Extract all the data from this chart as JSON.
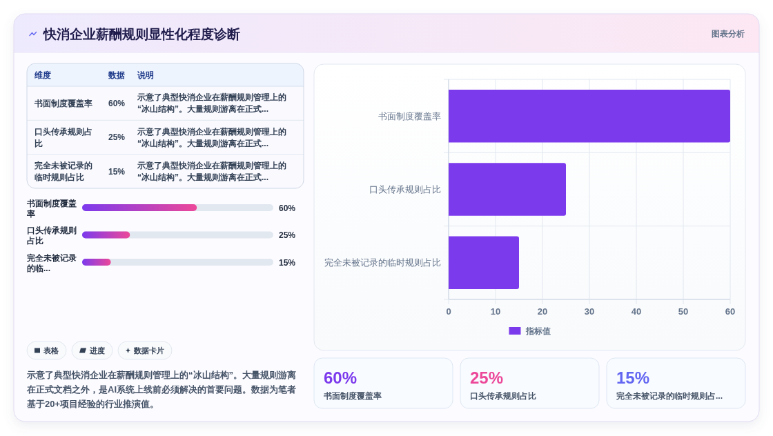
{
  "chart_data": [
    {
      "type": "other",
      "title": "快消企业薪酬规则显性化程度诊断",
      "categories": [
        "书面制度覆盖率",
        "口头传承规则占比",
        "完全未被记录的临时规则占比"
      ],
      "annotations": [
        "图表分析",
        "维度",
        "数据",
        "说明",
        "60%",
        "示意了典型快消企业在薪酬规则管理上的“冰山结构”。大量规则游离在正式...",
        "25%",
        "示意了典型快消企业在薪酬规则管理上的“冰山结构”。大量规则游离在正式...",
        "15%",
        "示意了典型快消企业在薪酬规则管理上的“冰山结构”。大量规则游离在正式..."
      ]
    },
    {
      "type": "bar",
      "orientation": "horizontal",
      "categories": [
        "书面制度覆盖率",
        "口头传承规则占比",
        "完全未被记录的临..."
      ],
      "values": [
        60,
        25,
        15
      ],
      "value_labels": [
        "60%",
        "25%",
        "15%"
      ],
      "color": "#7c3aed",
      "xlim": [
        0,
        100
      ],
      "tick_labels": "y",
      "annotations": [
        "表格",
        "进度",
        "数据卡片",
        "示意了典型快消企业在薪酬规则管理上的“冰山结构”。大量规则游离在正式文档之外，是AI系统上线前必须解决的首要问题。数据为笔者基于20+项目经验的行业推演值。"
      ]
    },
    {
      "type": "bar",
      "orientation": "horizontal",
      "categories": [
        "书面制度覆盖率",
        "口头传承规则占比",
        "完全未被记录的临时规则占比"
      ],
      "series": [
        {
          "name": "指标值",
          "color": "#7c3aed",
          "values": [
            60,
            25,
            15
          ]
        }
      ],
      "xlim": [
        0,
        60
      ],
      "xticks": [
        0,
        10,
        20,
        30,
        40,
        50,
        60
      ],
      "grid": true,
      "legend": "bottom"
    },
    {
      "type": "other",
      "categories": [
        "书面制度覆盖率",
        "口头传承规则占比",
        "完全未被记录的临时规则占..."
      ],
      "annotations": [
        "60%",
        "25%",
        "15%"
      ]
    }
  ]
}
